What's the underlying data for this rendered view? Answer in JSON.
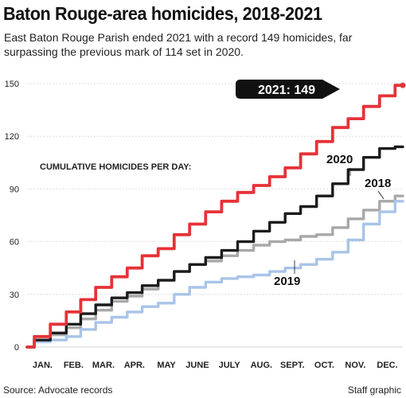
{
  "header": {
    "title": "Baton Rouge-area homicides, 2018-2021",
    "subtitle": "East Baton Rouge Parish ended 2021 with a record 149 homicides, far surpassing the previous mark of 114 set in 2020."
  },
  "footer": {
    "source": "Source: Advocate records",
    "credit": "Staff graphic"
  },
  "chart_data": {
    "type": "line",
    "title": "CUMULATIVE HOMICIDES PER DAY:",
    "xlabel": "",
    "ylabel": "",
    "x_unit": "day of year",
    "xlim": [
      1,
      365
    ],
    "ylim": [
      0,
      150
    ],
    "y_ticks": [
      0,
      30,
      60,
      90,
      120,
      150
    ],
    "y_tick_labels": [
      "0",
      "30",
      "60",
      "90",
      "120",
      "150"
    ],
    "month_labels": [
      "JAN.",
      "FEB.",
      "MAR.",
      "APR.",
      "MAY",
      "JUNE",
      "JULY",
      "AUG.",
      "SEPT.",
      "OCT.",
      "NOV.",
      "DEC."
    ],
    "month_label_days": [
      16,
      46,
      75,
      105,
      136,
      166,
      197,
      228,
      258,
      289,
      319,
      350
    ],
    "grid": true,
    "series": [
      {
        "name": "2018",
        "color": "#a8a8a8",
        "x": [
          1,
          15,
          32,
          46,
          60,
          75,
          91,
          105,
          120,
          136,
          151,
          166,
          182,
          197,
          213,
          228,
          244,
          258,
          274,
          289,
          305,
          319,
          335,
          350,
          365
        ],
        "values": [
          0,
          4,
          7,
          11,
          16,
          21,
          26,
          29,
          33,
          38,
          43,
          47,
          49,
          52,
          55,
          58,
          60,
          61,
          63,
          64,
          68,
          73,
          78,
          83,
          86
        ]
      },
      {
        "name": "2019",
        "color": "#a9c4e8",
        "x": [
          1,
          15,
          32,
          46,
          60,
          75,
          91,
          105,
          120,
          136,
          151,
          166,
          182,
          197,
          213,
          228,
          244,
          258,
          274,
          289,
          305,
          319,
          335,
          350,
          365
        ],
        "values": [
          0,
          3,
          4,
          6,
          10,
          14,
          17,
          20,
          23,
          25,
          30,
          34,
          37,
          39,
          40,
          41,
          43,
          45,
          47,
          50,
          54,
          61,
          70,
          77,
          83
        ]
      },
      {
        "name": "2020",
        "color": "#1c1c1c",
        "x": [
          1,
          15,
          32,
          46,
          60,
          75,
          91,
          105,
          120,
          136,
          151,
          166,
          182,
          197,
          213,
          228,
          244,
          258,
          274,
          289,
          305,
          319,
          335,
          350,
          365
        ],
        "values": [
          0,
          4,
          8,
          13,
          19,
          24,
          28,
          31,
          35,
          38,
          43,
          47,
          51,
          55,
          60,
          66,
          71,
          76,
          80,
          86,
          93,
          101,
          108,
          113,
          114
        ]
      },
      {
        "name": "2021",
        "color": "#e63238",
        "x": [
          1,
          15,
          32,
          46,
          60,
          75,
          91,
          105,
          120,
          136,
          151,
          166,
          182,
          197,
          213,
          228,
          244,
          258,
          274,
          289,
          305,
          319,
          335,
          350,
          365
        ],
        "values": [
          0,
          6,
          13,
          20,
          27,
          34,
          40,
          45,
          52,
          56,
          64,
          70,
          77,
          83,
          88,
          92,
          97,
          102,
          110,
          117,
          125,
          130,
          137,
          143,
          149
        ]
      }
    ],
    "annotations": {
      "final_value_callout": "2021: 149"
    }
  }
}
